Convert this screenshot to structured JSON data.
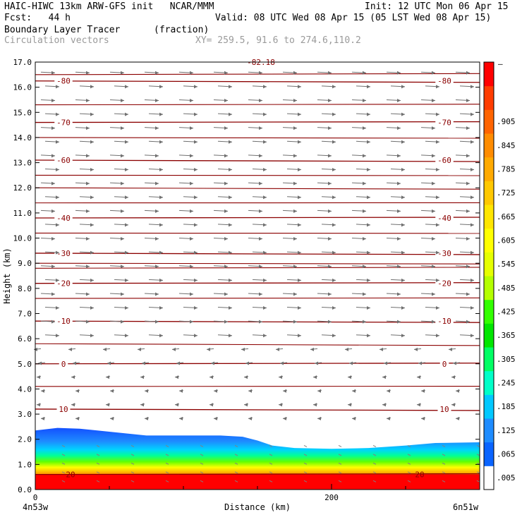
{
  "header": {
    "line1_left": "HAIC-HIWC 13km ARW-GFS init   NCAR/MMM",
    "line1_right": "Init: 12 UTC Mon 06 Apr 15",
    "line2_left": "Fcst:   44 h",
    "line2_right": "Valid: 08 UTC Wed 08 Apr 15 (05 LST Wed 08 Apr 15)",
    "line3_left": "Boundary Layer Tracer",
    "line3_units": "(fraction)",
    "line4_left": "Circulation vectors",
    "line4_xy": "XY= 259.5, 91.6 to 274.6,110.2"
  },
  "chart_data": {
    "type": "heatmap",
    "xlabel": "Distance (km)",
    "ylabel": "Height (km)",
    "xlim": [
      0,
      300
    ],
    "ylim": [
      0,
      17
    ],
    "x_ticks": [
      0,
      200
    ],
    "x_tick_labels": [
      "0",
      "200"
    ],
    "x_end_labels": [
      "4n53w",
      "6n51w"
    ],
    "y_ticks": [
      "0.0",
      "1.0",
      "2.0",
      "3.0",
      "4.0",
      "5.0",
      "6.0",
      "7.0",
      "8.0",
      "9.0",
      "10.0",
      "11.0",
      "12.0",
      "13.0",
      "14.0",
      "15.0",
      "16.0",
      "17.0"
    ],
    "colorbar_ticks": [
      ".005",
      ".065",
      ".125",
      ".185",
      ".245",
      ".305",
      ".365",
      ".425",
      ".485",
      ".545",
      ".605",
      ".665",
      ".725",
      ".785",
      ".845",
      ".905"
    ],
    "colorbar_colors": [
      "#ffffff",
      "#0a64ff",
      "#1e8cff",
      "#00c8ff",
      "#00ffc8",
      "#00ff64",
      "#00e600",
      "#32ff00",
      "#b4ff00",
      "#e6ff00",
      "#ffff00",
      "#ffe600",
      "#ffc800",
      "#ffaa00",
      "#ff8c00",
      "#ff6400",
      "#ff3c00",
      "#ff0000"
    ],
    "colorbar_top_label": "–",
    "tracer_top_km": [
      [
        0,
        2.35
      ],
      [
        15,
        2.45
      ],
      [
        30,
        2.42
      ],
      [
        50,
        2.3
      ],
      [
        75,
        2.15
      ],
      [
        100,
        2.15
      ],
      [
        125,
        2.15
      ],
      [
        140,
        2.1
      ],
      [
        150,
        1.95
      ],
      [
        160,
        1.75
      ],
      [
        175,
        1.65
      ],
      [
        200,
        1.62
      ],
      [
        225,
        1.65
      ],
      [
        250,
        1.75
      ],
      [
        270,
        1.85
      ],
      [
        300,
        1.88
      ]
    ],
    "temperature_contours_c": [
      {
        "label": "-82.18",
        "height_km": 17.0
      },
      {
        "label": "-80",
        "height_km": 16.25
      },
      {
        "label": "-70",
        "height_km": 14.6
      },
      {
        "label": "-60",
        "height_km": 13.1
      },
      {
        "label": "-40",
        "height_km": 10.8
      },
      {
        "label": "-30",
        "height_km": 9.4
      },
      {
        "label": "-20",
        "height_km": 8.2
      },
      {
        "label": "-10",
        "height_km": 6.7
      },
      {
        "label": "0",
        "height_km": 5.0
      },
      {
        "label": "10",
        "height_km": 3.2
      },
      {
        "label": "20",
        "height_km": 0.6
      }
    ],
    "wind_direction": "westerly aloft (above ~6 km), easterly below"
  }
}
